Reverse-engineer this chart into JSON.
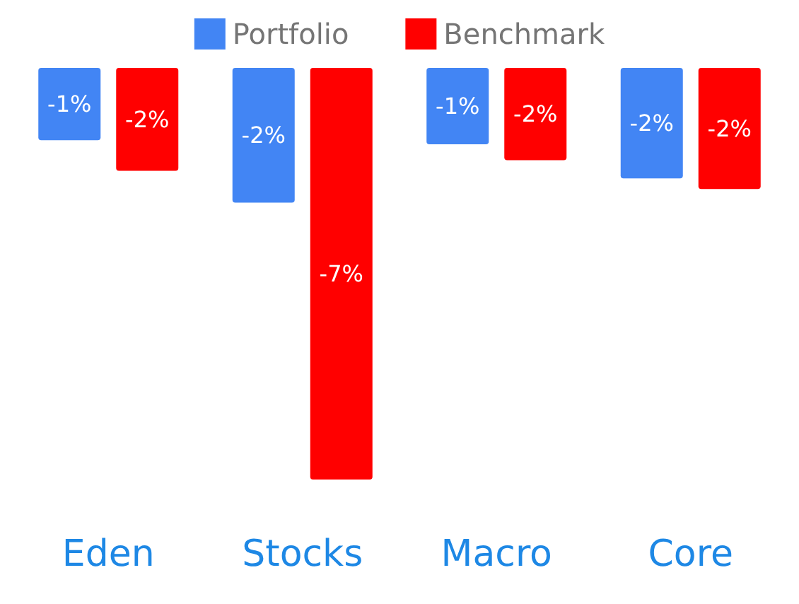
{
  "chart_data": {
    "type": "bar",
    "categories": [
      "Eden",
      "Stocks",
      "Macro",
      "Core"
    ],
    "series": [
      {
        "name": "Portfolio",
        "color": "#4285f4",
        "values": [
          -1.23,
          -2.29,
          -1.3,
          -1.88
        ],
        "value_labels": [
          "-1%",
          "-2%",
          "-1%",
          "-2%"
        ]
      },
      {
        "name": "Benchmark",
        "color": "#ff0000",
        "values": [
          -1.75,
          -7.0,
          -1.57,
          -2.06
        ],
        "value_labels": [
          "-2%",
          "-7%",
          "-2%",
          "-2%"
        ]
      }
    ],
    "legend": "top"
  }
}
